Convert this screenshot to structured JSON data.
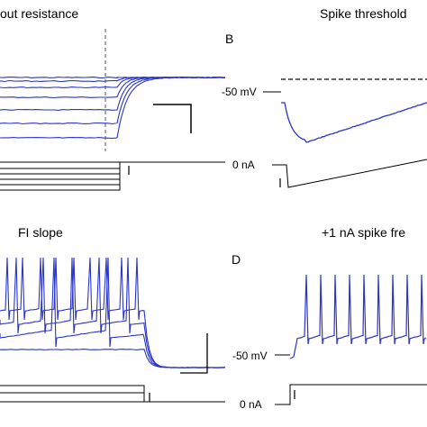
{
  "panels": {
    "a": {
      "title": "out resistance"
    },
    "b": {
      "letter": "B",
      "title": "Spike threshold",
      "voltage_label": "-50 mV",
      "current_label": "0 nA"
    },
    "c": {
      "title": "FI slope"
    },
    "d": {
      "letter": "D",
      "title": "+1 nA spike fre",
      "voltage_label": "-50 mV",
      "current_label": "0 nA"
    }
  },
  "colors": {
    "trace": "#2b35c8",
    "stimulus": "#000000",
    "background": "#ffffff"
  }
}
